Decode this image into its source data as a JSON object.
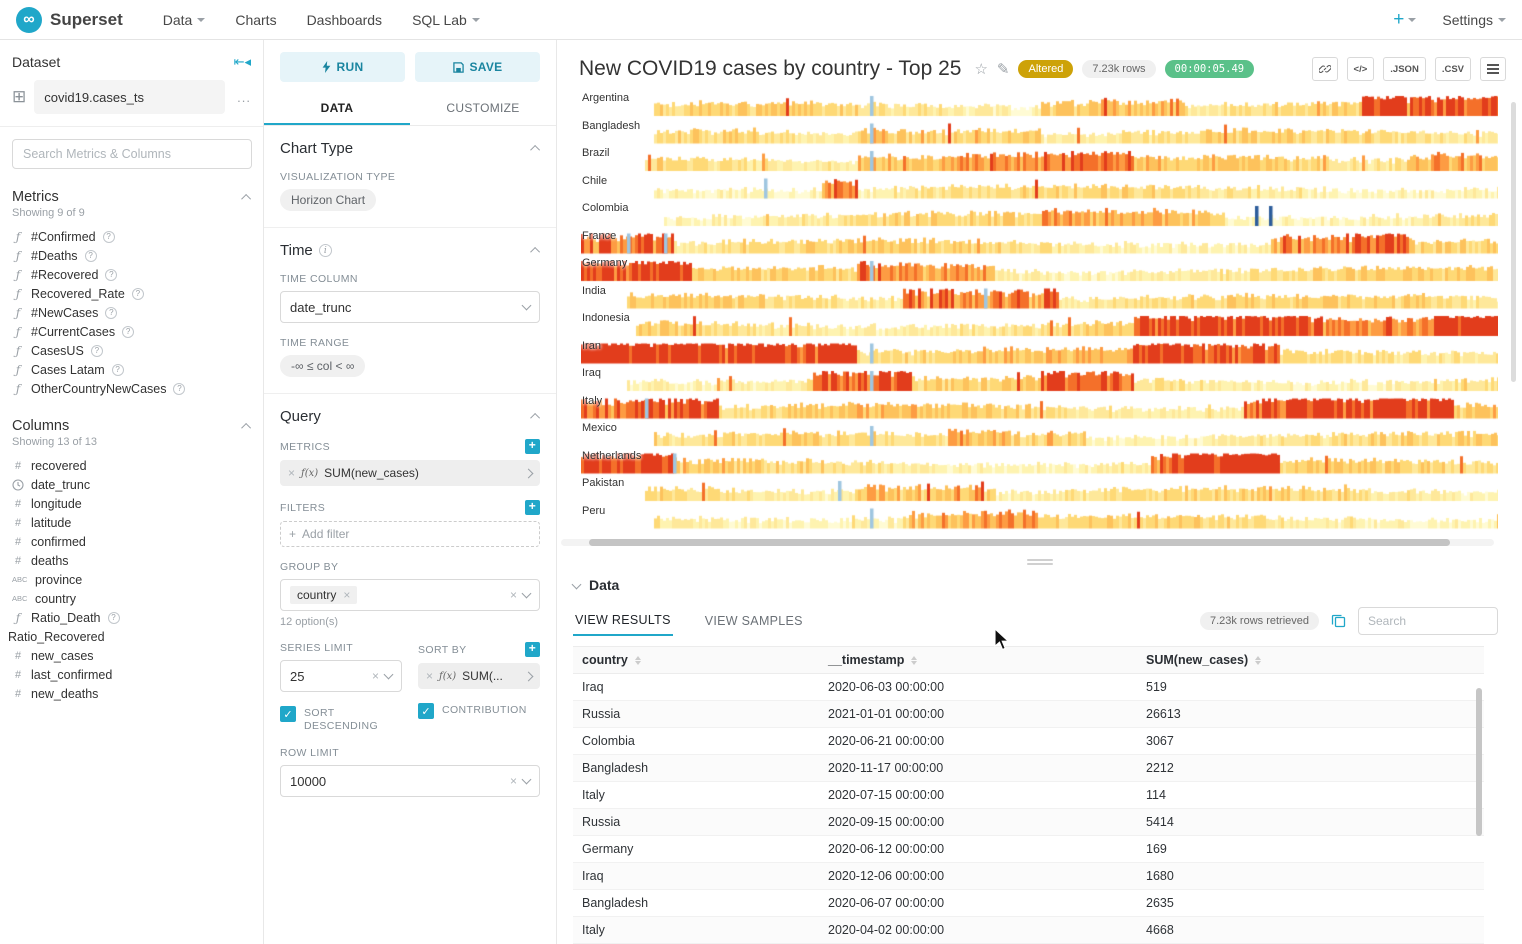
{
  "colors": {
    "accent": "#20a7c9",
    "altered_badge": "#cda208",
    "timer_badge": "#5ac189"
  },
  "icons": {
    "logo": "∞",
    "grid": "⊞",
    "collapse": "⇤◂",
    "more": "...",
    "function": "ƒ",
    "hash": "#",
    "abc": "ABC",
    "help": "?",
    "info": "i",
    "plus": "+",
    "close": "×",
    "check": "✓",
    "star": "☆",
    "edit": "✎",
    "code": "</>"
  },
  "navbar": {
    "brand": "Superset",
    "menu": [
      {
        "label": "Data",
        "caret": true
      },
      {
        "label": "Charts",
        "caret": false
      },
      {
        "label": "Dashboards",
        "caret": false
      },
      {
        "label": "SQL Lab",
        "caret": true
      }
    ],
    "plus_label": "+",
    "settings_label": "Settings"
  },
  "dataset_panel": {
    "title": "Dataset",
    "dataset_name": "covid19.cases_ts",
    "search_placeholder": "Search Metrics & Columns",
    "metrics_title": "Metrics",
    "metrics_showing": "Showing 9 of 9",
    "metrics": [
      {
        "label": "#Confirmed"
      },
      {
        "label": "#Deaths"
      },
      {
        "label": "#Recovered"
      },
      {
        "label": "Recovered_Rate"
      },
      {
        "label": "#NewCases"
      },
      {
        "label": "#CurrentCases"
      },
      {
        "label": "CasesUS"
      },
      {
        "label": "Cases Latam"
      },
      {
        "label": "OtherCountryNewCases"
      }
    ],
    "columns_title": "Columns",
    "columns_showing": "Showing 13 of 13",
    "columns": [
      {
        "label": "recovered",
        "type": "num"
      },
      {
        "label": "date_trunc",
        "type": "time"
      },
      {
        "label": "longitude",
        "type": "num"
      },
      {
        "label": "latitude",
        "type": "num"
      },
      {
        "label": "confirmed",
        "type": "num"
      },
      {
        "label": "deaths",
        "type": "num"
      },
      {
        "label": "province",
        "type": "abc"
      },
      {
        "label": "country",
        "type": "abc"
      },
      {
        "label": "Ratio_Death",
        "type": "fx",
        "help": true
      },
      {
        "label": "Ratio_Recovered",
        "type": "none"
      },
      {
        "label": "new_cases",
        "type": "num"
      },
      {
        "label": "last_confirmed",
        "type": "num"
      },
      {
        "label": "new_deaths",
        "type": "num"
      }
    ]
  },
  "controls": {
    "run_label": "RUN",
    "save_label": "SAVE",
    "tabs": [
      {
        "label": "DATA"
      },
      {
        "label": "CUSTOMIZE"
      }
    ],
    "chart_type_section": "Chart Type",
    "viz_type_label": "VISUALIZATION TYPE",
    "viz_type_value": "Horizon Chart",
    "time_section": "Time",
    "time_column_label": "TIME COLUMN",
    "time_column_value": "date_trunc",
    "time_range_label": "TIME RANGE",
    "time_range_value": "-∞ ≤ col < ∞",
    "query_section": "Query",
    "metrics_label": "METRICS",
    "metric_fx": "ƒ(x)",
    "metric_value": "SUM(new_cases)",
    "filters_label": "FILTERS",
    "add_filter_label": "Add filter",
    "group_by_label": "GROUP BY",
    "group_by_value": "country",
    "options_hint": "12 option(s)",
    "series_limit_label": "SERIES LIMIT",
    "series_limit_value": "25",
    "sort_by_label": "SORT BY",
    "sort_by_value": "SUM(...",
    "sort_descending_label": "SORT DESCENDING",
    "contribution_label": "CONTRIBUTION",
    "row_limit_label": "ROW LIMIT",
    "row_limit_value": "10000"
  },
  "chart_header": {
    "title": "New COVID19 cases by country - Top 25",
    "altered_badge": "Altered",
    "rows_badge": "7.23k rows",
    "timer_badge": "00:00:05.49",
    "json_label": ".JSON",
    "csv_label": ".CSV"
  },
  "chart_data": {
    "type": "horizon",
    "title": "New COVID19 cases by country - Top 25",
    "metric": "SUM(new_cases)",
    "time_column": "date_trunc",
    "series_limit": 25,
    "x_range_approx": [
      "2020-01",
      "2021-01"
    ],
    "visible_series": [
      "Argentina",
      "Bangladesh",
      "Brazil",
      "Chile",
      "Colombia",
      "France",
      "Germany",
      "India",
      "Indonesia",
      "Iran",
      "Iraq",
      "Italy",
      "Mexico",
      "Netherlands",
      "Pakistan",
      "Peru"
    ],
    "palette": [
      "#fffbd4",
      "#fef3b0",
      "#fee89a",
      "#fed976",
      "#fdc25c",
      "#fd9c43",
      "#f4702a",
      "#e23d1c"
    ],
    "negative_colors": {
      "light": "#9fc6e0",
      "dark": "#2d5d9b"
    },
    "series": [
      {
        "name": "Argentina",
        "start": 0.08,
        "base": 0.33,
        "hot": [
          [
            0.5,
            0.66,
            0.45
          ],
          [
            0.85,
            1,
            0.55
          ]
        ],
        "neg": [
          [
            0.315,
            "light"
          ]
        ]
      },
      {
        "name": "Bangladesh",
        "start": 0.08,
        "base": 0.3,
        "hot": [
          [
            0.3,
            0.5,
            0.4
          ]
        ],
        "neg": [
          [
            0.315,
            "light"
          ]
        ]
      },
      {
        "name": "Brazil",
        "start": 0.07,
        "base": 0.38,
        "hot": [
          [
            0.3,
            0.6,
            0.45
          ],
          [
            0.9,
            1,
            0.5
          ]
        ],
        "neg": [
          [
            0.315,
            "light"
          ]
        ]
      },
      {
        "name": "Chile",
        "start": 0.08,
        "base": 0.3,
        "hot": [
          [
            0.26,
            0.3,
            0.95
          ]
        ],
        "neg": [
          [
            0.2,
            "light"
          ]
        ]
      },
      {
        "name": "Colombia",
        "start": 0.09,
        "base": 0.3,
        "hot": [
          [
            0.5,
            0.7,
            0.4
          ]
        ],
        "neg": [
          [
            0.735,
            "dark"
          ],
          [
            0.75,
            "dark"
          ]
        ]
      },
      {
        "name": "France",
        "start": 0.0,
        "base": 0.34,
        "hot": [
          [
            0,
            0.1,
            0.9
          ],
          [
            0.75,
            0.9,
            0.6
          ]
        ],
        "neg": [
          [
            0.05,
            "light"
          ],
          [
            0.09,
            "light"
          ]
        ]
      },
      {
        "name": "Germany",
        "start": 0.0,
        "base": 0.34,
        "hot": [
          [
            0,
            0.12,
            0.8
          ],
          [
            0.3,
            0.45,
            0.5
          ]
        ],
        "neg": [
          [
            0.315,
            "light"
          ]
        ]
      },
      {
        "name": "India",
        "start": 0.05,
        "base": 0.34,
        "hot": [
          [
            0.35,
            0.52,
            0.7
          ]
        ],
        "neg": [
          [
            0.44,
            "light"
          ]
        ]
      },
      {
        "name": "Indonesia",
        "start": 0.06,
        "base": 0.38,
        "hot": [
          [
            0.6,
            1,
            0.55
          ],
          [
            0.93,
            1,
            0.85
          ]
        ],
        "neg": []
      },
      {
        "name": "Iran",
        "start": 0.0,
        "base": 0.46,
        "hot": [
          [
            0,
            0.3,
            0.9
          ],
          [
            0.6,
            0.76,
            0.5
          ]
        ],
        "neg": [
          [
            0.315,
            "light"
          ]
        ]
      },
      {
        "name": "Iraq",
        "start": 0.05,
        "base": 0.34,
        "hot": [
          [
            0.25,
            0.36,
            0.7
          ],
          [
            0.5,
            0.6,
            0.55
          ]
        ],
        "neg": [
          [
            0.315,
            "light"
          ]
        ]
      },
      {
        "name": "Italy",
        "start": 0.0,
        "base": 0.38,
        "hot": [
          [
            0,
            0.15,
            0.8
          ],
          [
            0.72,
            0.95,
            0.85
          ]
        ],
        "neg": [
          [
            0.07,
            "light"
          ]
        ]
      },
      {
        "name": "Mexico",
        "start": 0.08,
        "base": 0.3,
        "hot": [
          [
            0.4,
            0.55,
            0.4
          ]
        ],
        "neg": [
          [
            0.315,
            "light"
          ]
        ]
      },
      {
        "name": "Netherlands",
        "start": 0.0,
        "base": 0.34,
        "hot": [
          [
            0,
            0.1,
            0.7
          ],
          [
            0.62,
            0.76,
            0.8
          ]
        ],
        "neg": [
          [
            0.1,
            "light"
          ]
        ]
      },
      {
        "name": "Pakistan",
        "start": 0.07,
        "base": 0.3,
        "hot": [
          [
            0.3,
            0.45,
            0.5
          ]
        ],
        "neg": [
          [
            0.28,
            "light"
          ]
        ]
      },
      {
        "name": "Peru",
        "start": 0.08,
        "base": 0.3,
        "hot": [
          [
            0.35,
            0.5,
            0.4
          ]
        ],
        "neg": [
          [
            0.315,
            "light"
          ]
        ]
      }
    ]
  },
  "data_panel": {
    "title": "Data",
    "tabs": [
      {
        "label": "VIEW RESULTS"
      },
      {
        "label": "VIEW SAMPLES"
      }
    ],
    "rows_retrieved": "7.23k rows retrieved",
    "search_placeholder": "Search",
    "columns": [
      "country",
      "__timestamp",
      "SUM(new_cases)"
    ],
    "rows": [
      [
        "Iraq",
        "2020-06-03 00:00:00",
        "519"
      ],
      [
        "Russia",
        "2021-01-01 00:00:00",
        "26613"
      ],
      [
        "Colombia",
        "2020-06-21 00:00:00",
        "3067"
      ],
      [
        "Bangladesh",
        "2020-11-17 00:00:00",
        "2212"
      ],
      [
        "Italy",
        "2020-07-15 00:00:00",
        "114"
      ],
      [
        "Russia",
        "2020-09-15 00:00:00",
        "5414"
      ],
      [
        "Germany",
        "2020-06-12 00:00:00",
        "169"
      ],
      [
        "Iraq",
        "2020-12-06 00:00:00",
        "1680"
      ],
      [
        "Bangladesh",
        "2020-06-07 00:00:00",
        "2635"
      ],
      [
        "Italy",
        "2020-04-02 00:00:00",
        "4668"
      ]
    ]
  }
}
